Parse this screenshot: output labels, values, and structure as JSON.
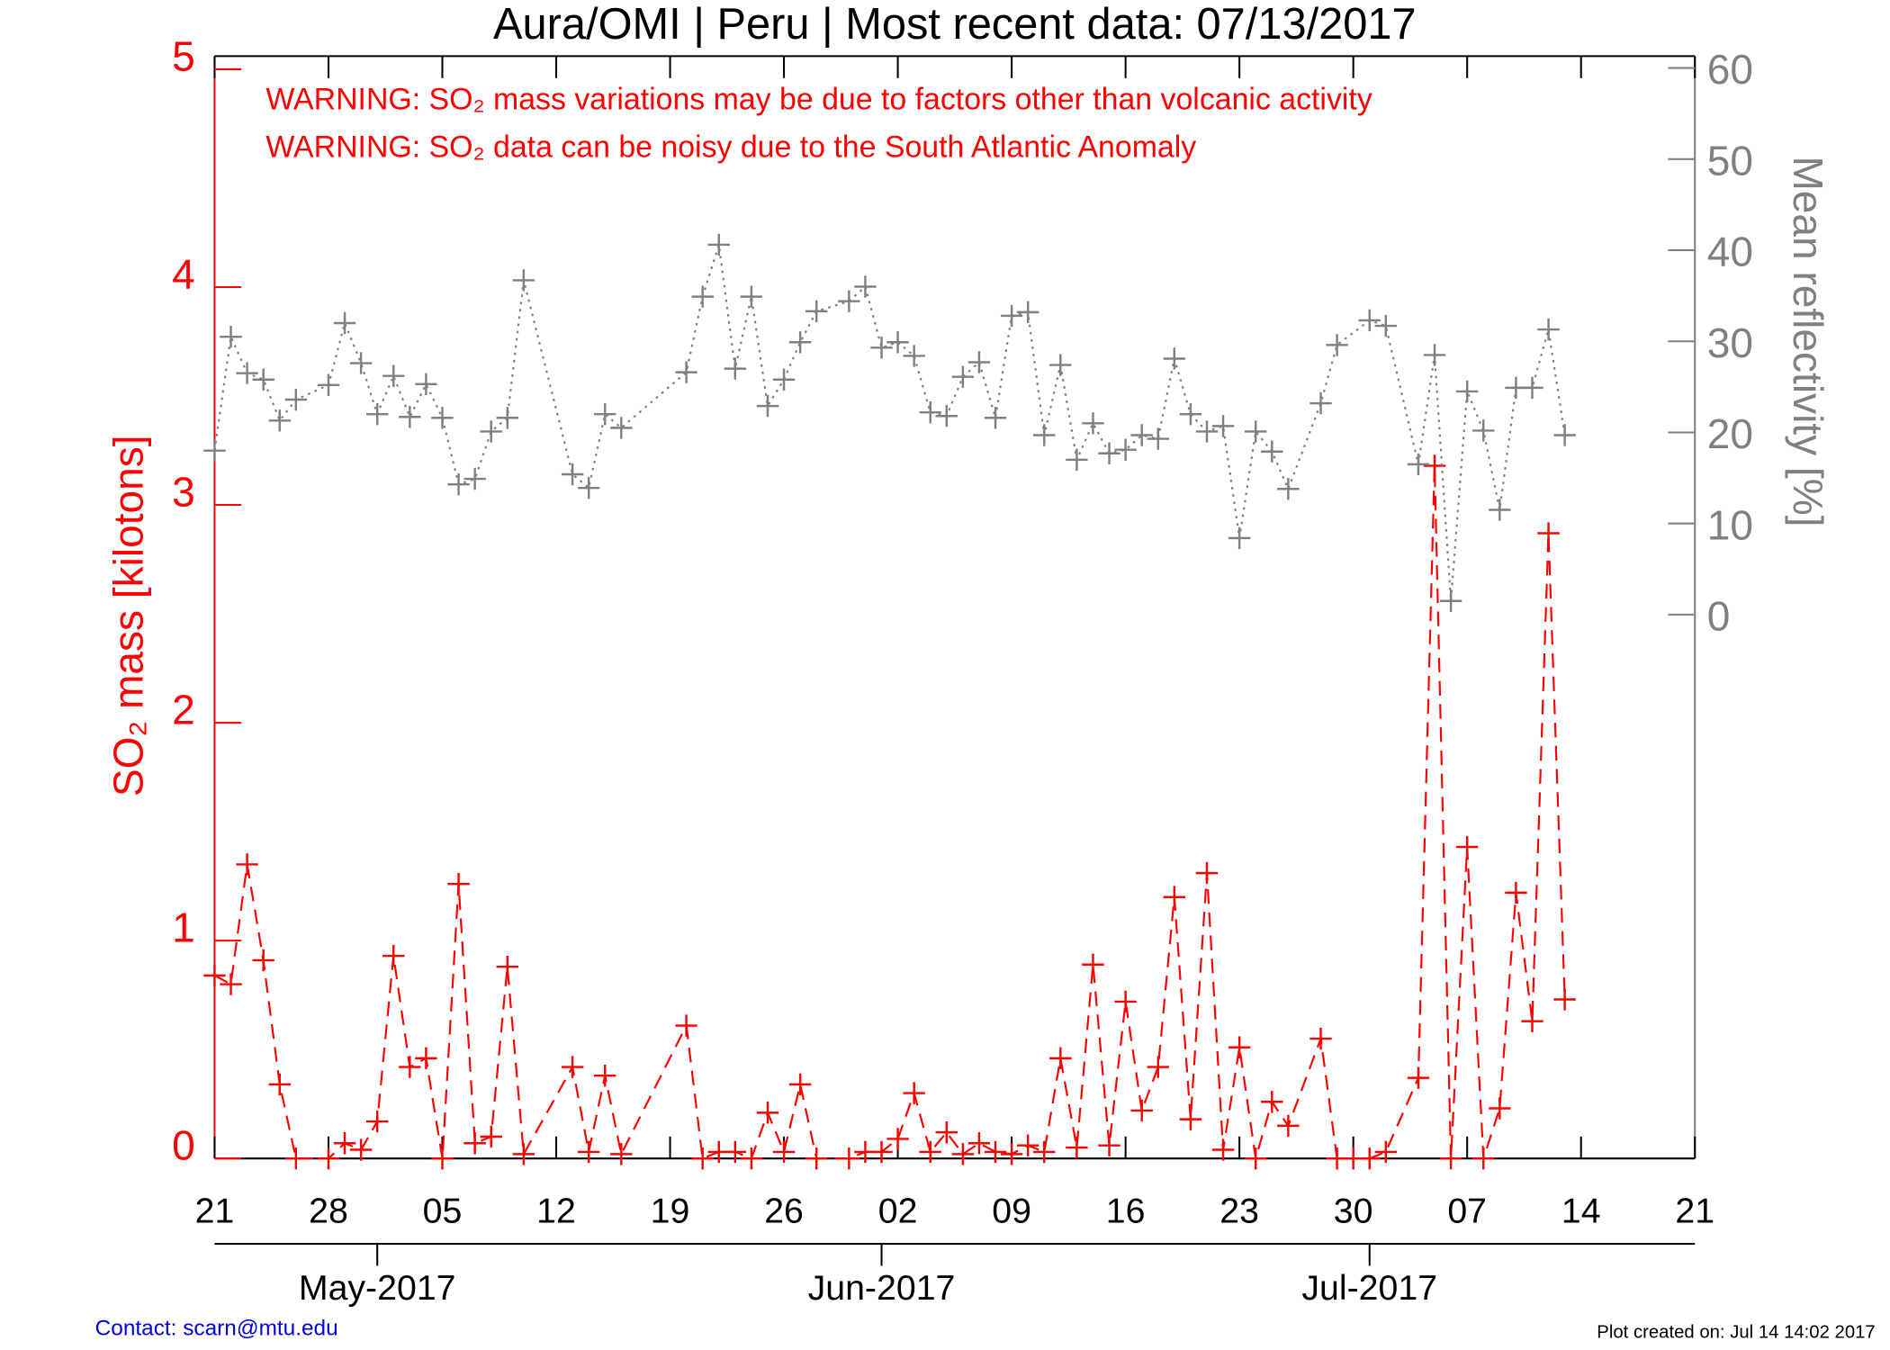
{
  "chart_data": {
    "type": "line",
    "title": "Aura/OMI | Peru | Most recent data: 07/13/2017",
    "annotations": [
      "WARNING: SO₂ mass variations may be due to factors other than volcanic activity",
      "WARNING: SO₂ data can be noisy due to the South Atlantic Anomaly"
    ],
    "ylabel": "SO₂ mass [kilotons]",
    "y2label": "Mean reflectivity [%]",
    "footer_left": "Contact: scarn@mtu.edu",
    "footer_right": "Plot created on: Jul 14 14:02 2017",
    "xlim": [
      "2017-04-21",
      "2017-07-21"
    ],
    "xticks": [
      {
        "value": "2017-04-21",
        "label": "21"
      },
      {
        "value": "2017-04-28",
        "label": "28"
      },
      {
        "value": "2017-05-05",
        "label": "05"
      },
      {
        "value": "2017-05-12",
        "label": "12"
      },
      {
        "value": "2017-05-19",
        "label": "19"
      },
      {
        "value": "2017-05-26",
        "label": "26"
      },
      {
        "value": "2017-06-02",
        "label": "02"
      },
      {
        "value": "2017-06-09",
        "label": "09"
      },
      {
        "value": "2017-06-16",
        "label": "16"
      },
      {
        "value": "2017-06-23",
        "label": "23"
      },
      {
        "value": "2017-06-30",
        "label": "30"
      },
      {
        "value": "2017-07-07",
        "label": "07"
      },
      {
        "value": "2017-07-14",
        "label": "14"
      },
      {
        "value": "2017-07-21",
        "label": "21"
      }
    ],
    "month_ticks": [
      {
        "value": "2017-05-01",
        "label": "May-2017"
      },
      {
        "value": "2017-06-01",
        "label": "Jun-2017"
      },
      {
        "value": "2017-07-01",
        "label": "Jul-2017"
      }
    ],
    "ylim": [
      0,
      5.06
    ],
    "yticks": [
      0,
      1,
      2,
      3,
      4,
      5
    ],
    "y2lim": [
      -59.7,
      61.3
    ],
    "y2ticks": [
      0,
      10,
      20,
      30,
      40,
      50,
      60
    ],
    "series": [
      {
        "color": "#ff0000",
        "axis": "y",
        "x": [
          "2017-04-21",
          "2017-04-22",
          "2017-04-23",
          "2017-04-24",
          "2017-04-25",
          "2017-04-26",
          "2017-04-28",
          "2017-04-29",
          "2017-04-30",
          "2017-05-01",
          "2017-05-02",
          "2017-05-03",
          "2017-05-04",
          "2017-05-05",
          "2017-05-06",
          "2017-05-07",
          "2017-05-08",
          "2017-05-09",
          "2017-05-10",
          "2017-05-13",
          "2017-05-14",
          "2017-05-15",
          "2017-05-16",
          "2017-05-20",
          "2017-05-21",
          "2017-05-22",
          "2017-05-23",
          "2017-05-24",
          "2017-05-25",
          "2017-05-26",
          "2017-05-27",
          "2017-05-28",
          "2017-05-30",
          "2017-05-31",
          "2017-06-01",
          "2017-06-02",
          "2017-06-03",
          "2017-06-04",
          "2017-06-05",
          "2017-06-06",
          "2017-06-07",
          "2017-06-08",
          "2017-06-09",
          "2017-06-10",
          "2017-06-11",
          "2017-06-12",
          "2017-06-13",
          "2017-06-14",
          "2017-06-15",
          "2017-06-16",
          "2017-06-17",
          "2017-06-18",
          "2017-06-19",
          "2017-06-20",
          "2017-06-21",
          "2017-06-22",
          "2017-06-23",
          "2017-06-24",
          "2017-06-25",
          "2017-06-26",
          "2017-06-28",
          "2017-06-29",
          "2017-06-30",
          "2017-07-01",
          "2017-07-02",
          "2017-07-04",
          "2017-07-05",
          "2017-07-06",
          "2017-07-07",
          "2017-07-08",
          "2017-07-09",
          "2017-07-10",
          "2017-07-11",
          "2017-07-12",
          "2017-07-13"
        ],
        "values": [
          0.84,
          0.8,
          1.35,
          0.91,
          0.34,
          0.0,
          0.0,
          0.07,
          0.04,
          0.17,
          0.93,
          0.42,
          0.46,
          0.0,
          1.26,
          0.07,
          0.1,
          0.88,
          0.02,
          0.42,
          0.03,
          0.38,
          0.02,
          0.61,
          0.0,
          0.03,
          0.03,
          0.0,
          0.21,
          0.03,
          0.34,
          0.0,
          0.0,
          0.03,
          0.03,
          0.09,
          0.3,
          0.03,
          0.12,
          0.02,
          0.07,
          0.03,
          0.02,
          0.06,
          0.03,
          0.46,
          0.05,
          0.89,
          0.06,
          0.72,
          0.22,
          0.42,
          1.2,
          0.18,
          1.31,
          0.04,
          0.51,
          0.0,
          0.26,
          0.15,
          0.55,
          0.0,
          0.0,
          0.0,
          0.03,
          0.37,
          3.18,
          0.0,
          1.43,
          0.0,
          0.23,
          1.22,
          0.63,
          2.87,
          0.73
        ]
      },
      {
        "color": "#808080",
        "axis": "y2",
        "x": [
          "2017-04-21",
          "2017-04-22",
          "2017-04-23",
          "2017-04-24",
          "2017-04-25",
          "2017-04-26",
          "2017-04-28",
          "2017-04-29",
          "2017-04-30",
          "2017-05-01",
          "2017-05-02",
          "2017-05-03",
          "2017-05-04",
          "2017-05-05",
          "2017-05-06",
          "2017-05-07",
          "2017-05-08",
          "2017-05-09",
          "2017-05-10",
          "2017-05-13",
          "2017-05-14",
          "2017-05-15",
          "2017-05-16",
          "2017-05-20",
          "2017-05-21",
          "2017-05-22",
          "2017-05-23",
          "2017-05-24",
          "2017-05-25",
          "2017-05-26",
          "2017-05-27",
          "2017-05-28",
          "2017-05-30",
          "2017-05-31",
          "2017-06-01",
          "2017-06-02",
          "2017-06-03",
          "2017-06-04",
          "2017-06-05",
          "2017-06-06",
          "2017-06-07",
          "2017-06-08",
          "2017-06-09",
          "2017-06-10",
          "2017-06-11",
          "2017-06-12",
          "2017-06-13",
          "2017-06-14",
          "2017-06-15",
          "2017-06-16",
          "2017-06-17",
          "2017-06-18",
          "2017-06-19",
          "2017-06-20",
          "2017-06-21",
          "2017-06-22",
          "2017-06-23",
          "2017-06-24",
          "2017-06-25",
          "2017-06-26",
          "2017-06-28",
          "2017-06-29",
          "2017-07-01",
          "2017-07-02",
          "2017-07-04",
          "2017-07-05",
          "2017-07-06",
          "2017-07-07",
          "2017-07-08",
          "2017-07-09",
          "2017-07-10",
          "2017-07-11",
          "2017-07-12",
          "2017-07-13"
        ],
        "values": [
          18.0,
          30.5,
          26.5,
          25.8,
          21.3,
          23.6,
          25.2,
          32.0,
          27.6,
          22.0,
          26.2,
          21.7,
          25.3,
          21.6,
          14.3,
          14.9,
          20.1,
          21.6,
          36.7,
          15.4,
          13.9,
          22.0,
          20.5,
          26.6,
          34.9,
          40.6,
          27.0,
          34.9,
          22.9,
          25.8,
          29.9,
          33.3,
          34.4,
          36.0,
          29.3,
          29.9,
          28.4,
          22.2,
          21.8,
          26.1,
          27.7,
          21.6,
          32.8,
          33.2,
          19.7,
          27.4,
          17.0,
          21.0,
          17.7,
          18.1,
          19.7,
          19.3,
          28.1,
          22.0,
          20.1,
          20.7,
          8.4,
          20.1,
          17.9,
          13.8,
          23.2,
          29.6,
          32.3,
          31.7,
          16.5,
          28.5,
          1.5,
          24.5,
          20.2,
          11.5,
          24.9,
          24.9,
          31.3,
          19.7
        ]
      }
    ]
  }
}
